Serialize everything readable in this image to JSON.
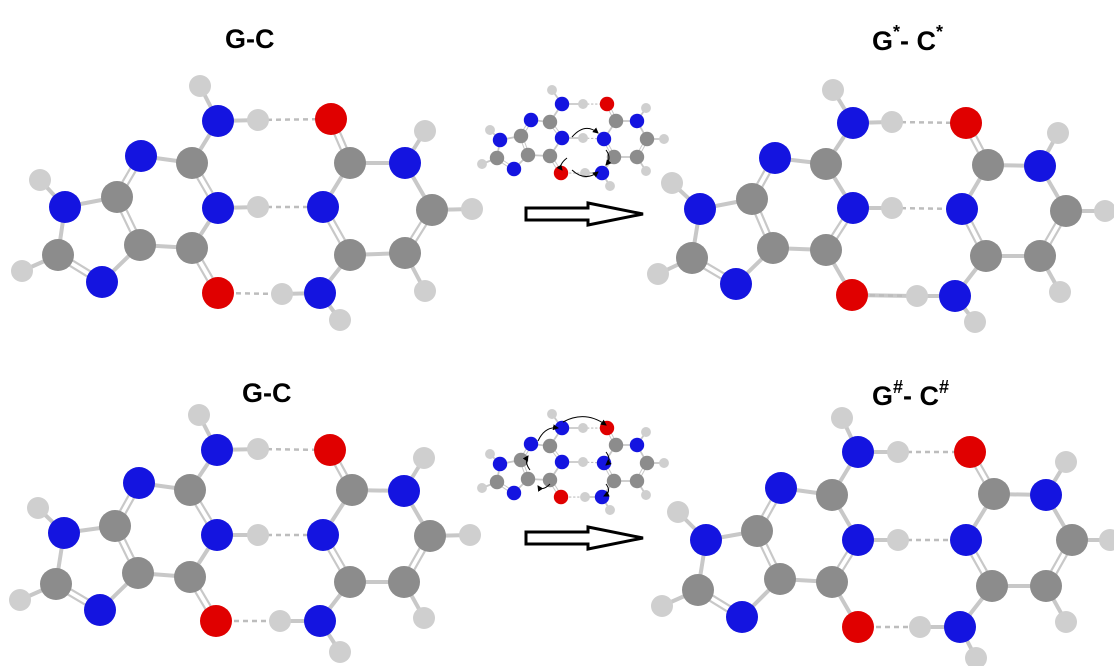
{
  "panels": [
    {
      "left_label": "G-C",
      "right_base": {
        "g": "G",
        "g_sup": "*",
        "sep": "-",
        "c": " C",
        "c_sup": "*"
      }
    },
    {
      "left_label": "G-C",
      "right_base": {
        "g": "G",
        "g_sup": "#",
        "sep": "-",
        "c": " C",
        "c_sup": "#"
      }
    }
  ],
  "colors": {
    "nitrogen": "#1414e0",
    "oxygen": "#e00000",
    "carbon": "#8c8c8c",
    "hydrogen": "#cfcfcf",
    "bond": "#c8c8c8",
    "hbond": "#bdbdbd"
  }
}
